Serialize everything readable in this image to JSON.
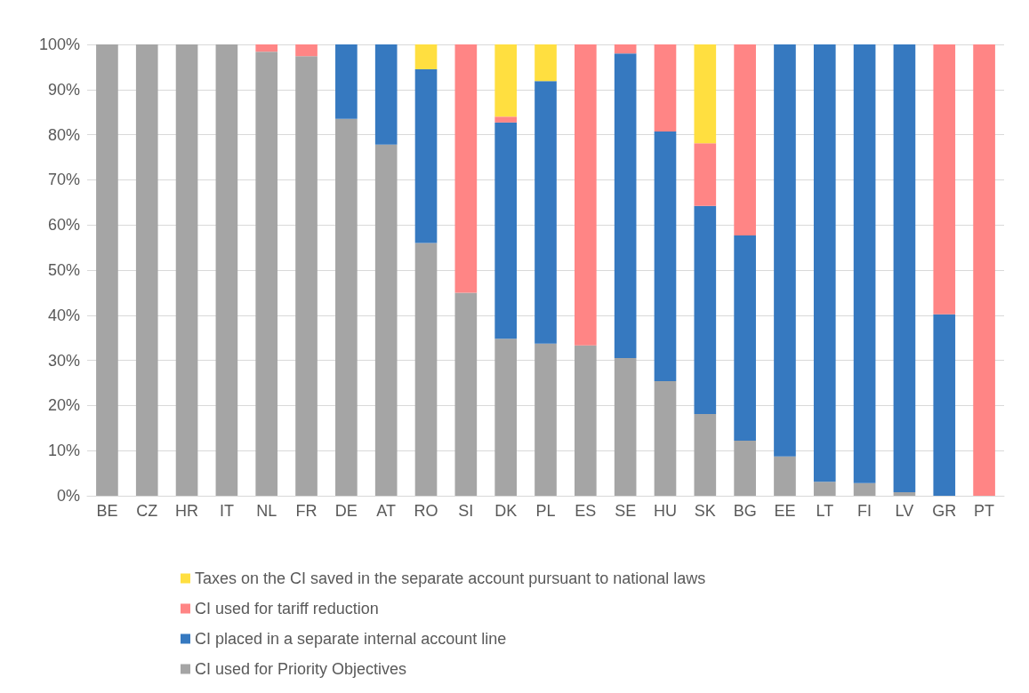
{
  "chart_data": {
    "type": "bar",
    "stacked": true,
    "categories": [
      "BE",
      "CZ",
      "HR",
      "IT",
      "NL",
      "FR",
      "DE",
      "AT",
      "RO",
      "SI",
      "DK",
      "PL",
      "ES",
      "SE",
      "HU",
      "SK",
      "BG",
      "EE",
      "LT",
      "FI",
      "LV",
      "GR",
      "PT"
    ],
    "series": [
      {
        "name": "CI used for Priority Objectives",
        "color": "#a5a5a5",
        "values": [
          100,
          100,
          100,
          100,
          98.4,
          97.4,
          83.5,
          77.8,
          56,
          45,
          34.8,
          33.7,
          33.3,
          30.5,
          25.4,
          18.1,
          12.2,
          8.7,
          3.1,
          2.8,
          0.8,
          0,
          0
        ]
      },
      {
        "name": "CI placed in a separate internal account line",
        "color": "#3679c0",
        "values": [
          0,
          0,
          0,
          0,
          0,
          0,
          16.5,
          22.2,
          38.5,
          0,
          47.9,
          58.2,
          0,
          67.5,
          55.3,
          46.1,
          45.5,
          91.3,
          96.9,
          97.2,
          99.2,
          40.2,
          0
        ]
      },
      {
        "name": "CI used for tariff reduction",
        "color": "#ff8585",
        "values": [
          0,
          0,
          0,
          0,
          1.6,
          2.6,
          0,
          0,
          0,
          55,
          1.3,
          0,
          66.7,
          2,
          19.3,
          13.9,
          42.3,
          0,
          0,
          0,
          0,
          59.8,
          100
        ]
      },
      {
        "name": "Taxes on the CI saved in the separate account pursuant to national laws",
        "color": "#ffdf40",
        "values": [
          0,
          0,
          0,
          0,
          0,
          0,
          0,
          0,
          5.5,
          0,
          16,
          8.1,
          0,
          0,
          0,
          21.9,
          0,
          0,
          0,
          0,
          0,
          0,
          0
        ]
      }
    ],
    "ylim": [
      0,
      100
    ],
    "yticks": [
      {
        "value": 0,
        "label": "0%"
      },
      {
        "value": 10,
        "label": "10%"
      },
      {
        "value": 20,
        "label": "20%"
      },
      {
        "value": 30,
        "label": "30%"
      },
      {
        "value": 40,
        "label": "40%"
      },
      {
        "value": 50,
        "label": "50%"
      },
      {
        "value": 60,
        "label": "60%"
      },
      {
        "value": 70,
        "label": "70%"
      },
      {
        "value": 80,
        "label": "80%"
      },
      {
        "value": 90,
        "label": "90%"
      },
      {
        "value": 100,
        "label": "100%"
      }
    ],
    "grid": "y",
    "legend": "bottom"
  }
}
